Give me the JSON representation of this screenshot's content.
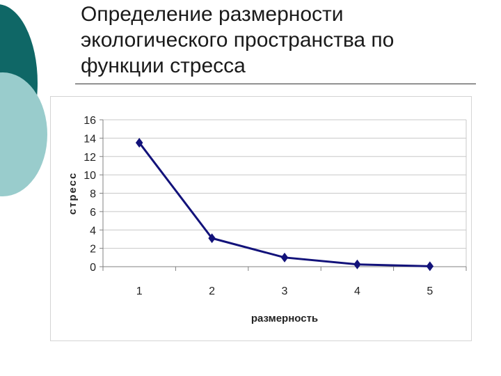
{
  "slide": {
    "title_lines": [
      "Определение размерности",
      "экологического пространства по",
      "функции стресса"
    ]
  },
  "colors": {
    "accent_dark": "#0f6766",
    "accent_light": "#99cccc",
    "series_line": "#12127a"
  },
  "chart_data": {
    "type": "line",
    "title": "",
    "xlabel": "размерность",
    "ylabel": "стресс",
    "categories": [
      "1",
      "2",
      "3",
      "4",
      "5"
    ],
    "x": [
      1,
      2,
      3,
      4,
      5
    ],
    "series": [
      {
        "values": [
          13.5,
          3.1,
          1.0,
          0.25,
          0.05
        ],
        "marker": "diamond"
      }
    ],
    "ylim": [
      0,
      16
    ],
    "yticks": [
      0,
      2,
      4,
      6,
      8,
      10,
      12,
      14,
      16
    ],
    "grid": true,
    "legend": "none"
  }
}
